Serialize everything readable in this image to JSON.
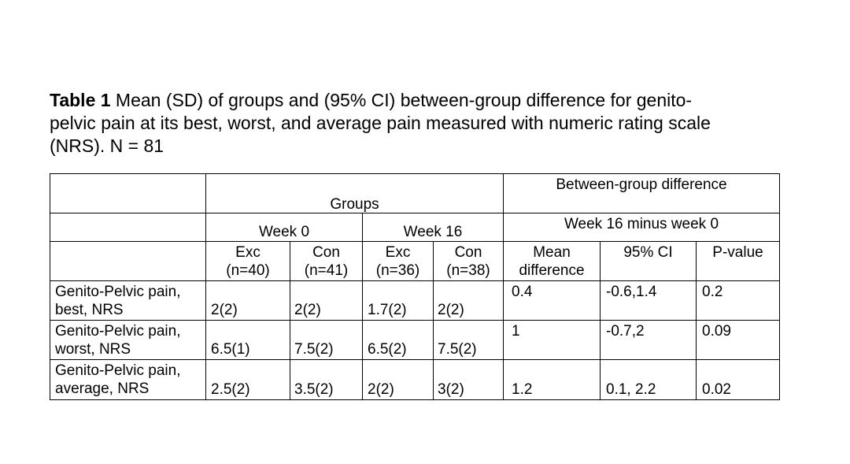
{
  "caption": {
    "label": "Table 1",
    "line1_rest": " Mean (SD) of groups and (95% CI) between-group difference for genito-",
    "line2": "pelvic pain at its best, worst, and average pain measured with numeric rating scale",
    "line3": "(NRS). N = 81"
  },
  "table": {
    "headers": {
      "groups": "Groups",
      "between_group_difference": "Between-group difference",
      "week0": "Week 0",
      "week16": "Week 16",
      "week16_minus_week0": "Week 16 minus week 0",
      "columns": [
        {
          "line1": "Exc",
          "line2": "(n=40)"
        },
        {
          "line1": "Con",
          "line2": "(n=41)"
        },
        {
          "line1": "Exc",
          "line2": "(n=36)"
        },
        {
          "line1": "Con",
          "line2": "(n=38)"
        },
        {
          "line1": "Mean",
          "line2": "difference"
        },
        {
          "line1": "95% CI",
          "line2": ""
        },
        {
          "line1": "P-value",
          "line2": ""
        }
      ]
    },
    "rows": [
      {
        "label_line1": "Genito-Pelvic pain,",
        "label_line2": "best, NRS",
        "w0_exc": "2(2)",
        "w0_con": "2(2)",
        "w16_exc": "1.7(2)",
        "w16_con": "2(2)",
        "mean_difference": "0.4",
        "ci": "-0.6,1.4",
        "p_value": "0.2"
      },
      {
        "label_line1": "Genito-Pelvic pain,",
        "label_line2": "worst, NRS",
        "w0_exc": "6.5(1)",
        "w0_con": "7.5(2)",
        "w16_exc": "6.5(2)",
        "w16_con": "7.5(2)",
        "mean_difference": "1",
        "ci": "-0.7,2",
        "p_value": "0.09"
      },
      {
        "label_line1": "Genito-Pelvic pain,",
        "label_line2": "average, NRS",
        "w0_exc": "2.5(2)",
        "w0_con": "3.5(2)",
        "w16_exc": "2(2)",
        "w16_con": "3(2)",
        "mean_difference": "1.2",
        "ci": "0.1, 2.2",
        "p_value": "0.02"
      }
    ]
  }
}
